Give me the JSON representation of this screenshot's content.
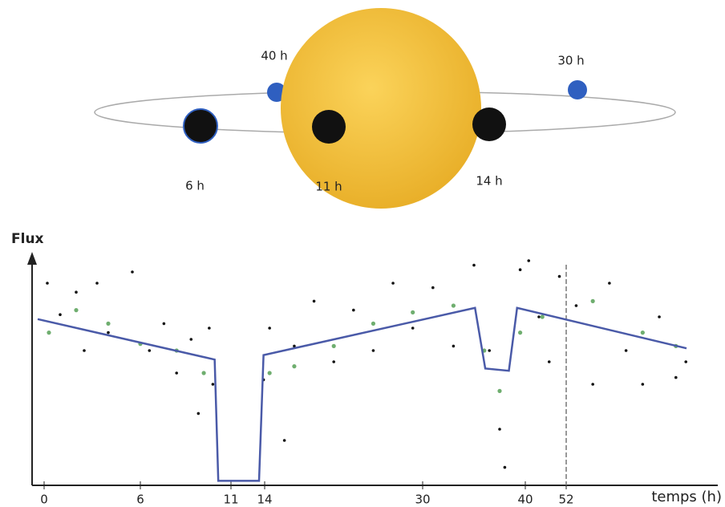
{
  "diagram": {
    "labels": [
      "40 h",
      "30 h",
      "6 h",
      "11 h",
      "14 h"
    ]
  },
  "chart_data": {
    "type": "line",
    "y_label": "Flux",
    "x_label": "temps (h)",
    "x": [
      -0.4,
      10.1,
      10.3,
      13.5,
      13.9,
      35.1,
      36.1,
      38.4,
      39.2,
      88.2
    ],
    "values": [
      0.74,
      0.56,
      0.02,
      0.02,
      0.58,
      0.79,
      0.52,
      0.51,
      0.79,
      0.61
    ],
    "color": "#4a5aa8",
    "scatter": [
      {
        "color": "#111111",
        "x": [
          0.2,
          1,
          2,
          2.5,
          3.3,
          4,
          5.5,
          6.5,
          7.3,
          8,
          8.8,
          9.2,
          9.8,
          10,
          13.9,
          14.5,
          16,
          17,
          19,
          21,
          23,
          25,
          27,
          29,
          31,
          33,
          35,
          36.5,
          37.5,
          38,
          39.5,
          41,
          44,
          47,
          50,
          55,
          60,
          65,
          70,
          75,
          80,
          85,
          88
        ],
        "values": [
          0.9,
          0.76,
          0.86,
          0.6,
          0.9,
          0.68,
          0.95,
          0.6,
          0.72,
          0.5,
          0.65,
          0.32,
          0.7,
          0.45,
          0.47,
          0.7,
          0.2,
          0.62,
          0.82,
          0.55,
          0.78,
          0.6,
          0.9,
          0.7,
          0.88,
          0.62,
          0.98,
          0.6,
          0.25,
          0.08,
          0.96,
          1.0,
          0.75,
          0.55,
          0.93,
          0.8,
          0.45,
          0.9,
          0.6,
          0.45,
          0.75,
          0.48,
          0.55
        ]
      },
      {
        "color": "#6fae6f",
        "x": [
          0.3,
          2,
          4,
          6,
          8,
          9.5,
          14.5,
          17,
          21,
          25,
          29,
          33,
          36,
          37.5,
          39.5,
          45,
          60,
          75,
          85
        ],
        "values": [
          0.68,
          0.78,
          0.72,
          0.63,
          0.6,
          0.5,
          0.5,
          0.53,
          0.62,
          0.72,
          0.77,
          0.8,
          0.6,
          0.42,
          0.68,
          0.75,
          0.82,
          0.68,
          0.62
        ]
      }
    ],
    "xlim": [
      -0.75,
      97.6
    ],
    "ylim": [
      0,
      1
    ],
    "xticks": [
      0,
      6,
      11,
      14,
      30,
      40,
      52
    ],
    "vline": 52
  }
}
